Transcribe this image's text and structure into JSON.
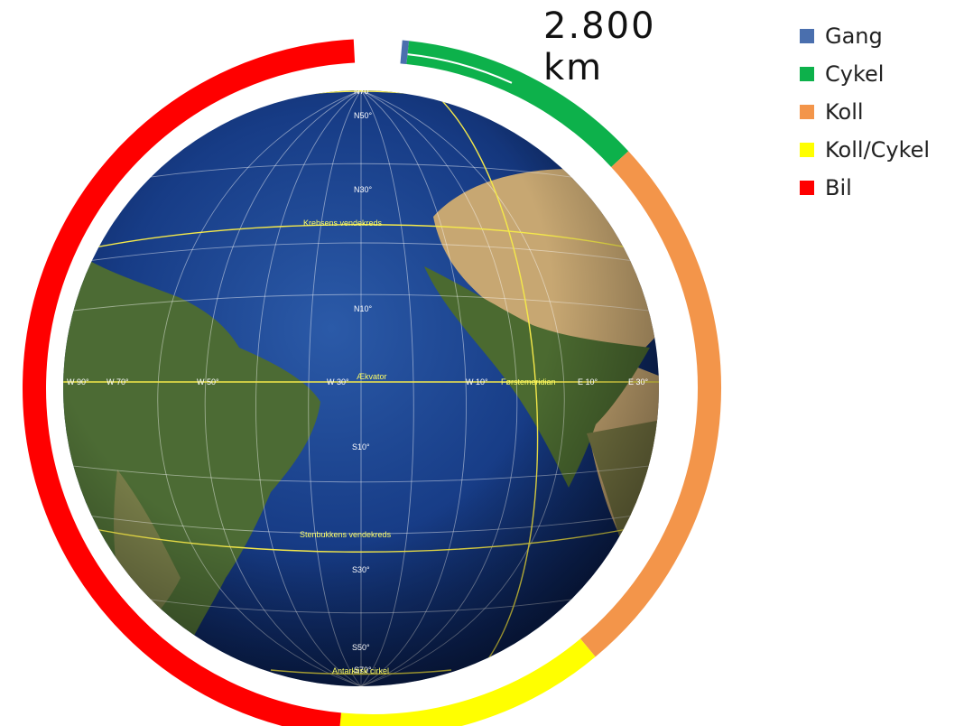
{
  "chart_data": {
    "type": "pie",
    "annotation": {
      "value": "2.800",
      "unit": "km"
    },
    "series": [
      {
        "name": "Gang",
        "color": "#4a6fae",
        "value": 0.3
      },
      {
        "name": "Cykel",
        "color": "#0db14b",
        "value": 11.2
      },
      {
        "name": "Koll",
        "color": "#f3954a",
        "value": 25.3
      },
      {
        "name": "Koll/Cykel",
        "color": "#ffff00",
        "value": 12.3
      },
      {
        "name": "Bil",
        "color": "#ff0000",
        "value": 46.7
      }
    ],
    "legend": "right",
    "globe_labels": {
      "latitudes": [
        "N70°",
        "N50°",
        "N30°",
        "N10°",
        "S10°",
        "S30°",
        "S50°",
        "S70°"
      ],
      "longitudes": [
        "W 90°",
        "W 70°",
        "W 50°",
        "W 30°",
        "W 10°",
        "E 10°",
        "E 30°"
      ],
      "named_lines": [
        "Krebsens vendekreds",
        "Ækvator",
        "Førstemeridian",
        "Stenbukkens vendekreds",
        "Antarktisk cirkel"
      ]
    }
  }
}
